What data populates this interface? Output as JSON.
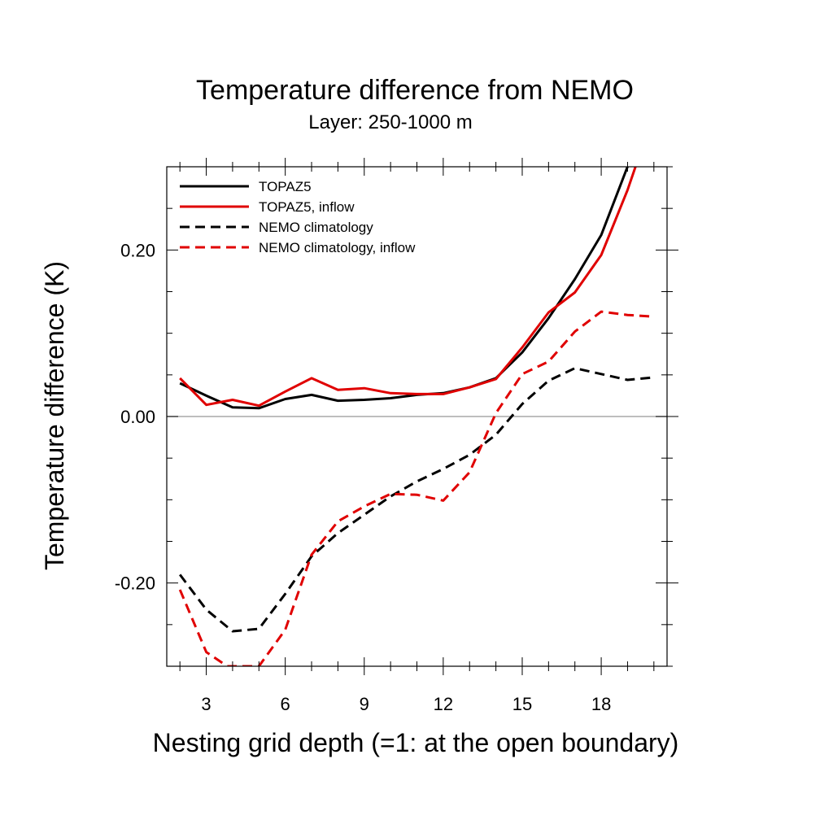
{
  "chart_data": {
    "type": "line",
    "title": "Temperature difference from NEMO",
    "subtitle": "Layer: 250-1000 m",
    "xlabel": "Nesting grid depth (=1: at the open boundary)",
    "ylabel": "Temperature difference (K)",
    "xlim": [
      1.5,
      20.5
    ],
    "ylim": [
      -0.3,
      0.3
    ],
    "x_ticks": [
      3,
      6,
      9,
      12,
      15,
      18
    ],
    "x_tick_labels": [
      "3",
      "6",
      "9",
      "12",
      "15",
      "18"
    ],
    "y_ticks": [
      -0.2,
      0.0,
      0.2
    ],
    "y_tick_labels": [
      "-0.20",
      "0.00",
      "0.20"
    ],
    "zero_line": true,
    "grid": false,
    "legend_position": "top-left",
    "series": [
      {
        "name": "TOPAZ5",
        "color": "#000000",
        "dash": "solid",
        "x": [
          2,
          3,
          4,
          5,
          6,
          7,
          8,
          9,
          10,
          11,
          12,
          13,
          14,
          15,
          16,
          17,
          18,
          19
        ],
        "values": [
          0.04,
          0.025,
          0.011,
          0.01,
          0.021,
          0.026,
          0.019,
          0.02,
          0.022,
          0.026,
          0.028,
          0.035,
          0.046,
          0.077,
          0.118,
          0.165,
          0.218,
          0.3
        ]
      },
      {
        "name": "TOPAZ5, inflow",
        "color": "#e00000",
        "dash": "solid",
        "x": [
          2,
          3,
          4,
          5,
          6,
          7,
          8,
          9,
          10,
          11,
          12,
          13,
          14,
          15,
          16,
          17,
          18,
          19,
          19.3
        ],
        "values": [
          0.046,
          0.014,
          0.02,
          0.013,
          0.03,
          0.046,
          0.032,
          0.034,
          0.028,
          0.027,
          0.027,
          0.035,
          0.045,
          0.083,
          0.125,
          0.149,
          0.194,
          0.272,
          0.3
        ]
      },
      {
        "name": "NEMO climatology",
        "color": "#000000",
        "dash": "dashed",
        "x": [
          2,
          3,
          4,
          5,
          6,
          7,
          8,
          9,
          10,
          11,
          12,
          13,
          14,
          15,
          16,
          17,
          18,
          19,
          20
        ],
        "values": [
          -0.19,
          -0.232,
          -0.258,
          -0.255,
          -0.213,
          -0.168,
          -0.14,
          -0.118,
          -0.096,
          -0.078,
          -0.063,
          -0.046,
          -0.022,
          0.015,
          0.043,
          0.058,
          0.051,
          0.044,
          0.047
        ]
      },
      {
        "name": "NEMO climatology, inflow",
        "color": "#e00000",
        "dash": "dashed",
        "x": [
          2,
          3,
          3.8,
          5,
          6,
          7,
          8,
          9,
          10,
          11,
          12,
          13,
          14,
          15,
          16,
          17,
          18,
          19,
          20
        ],
        "values": [
          -0.208,
          -0.283,
          -0.3,
          -0.3,
          -0.256,
          -0.166,
          -0.126,
          -0.108,
          -0.093,
          -0.094,
          -0.101,
          -0.067,
          0.004,
          0.051,
          0.066,
          0.102,
          0.126,
          0.122,
          0.12
        ]
      }
    ]
  }
}
